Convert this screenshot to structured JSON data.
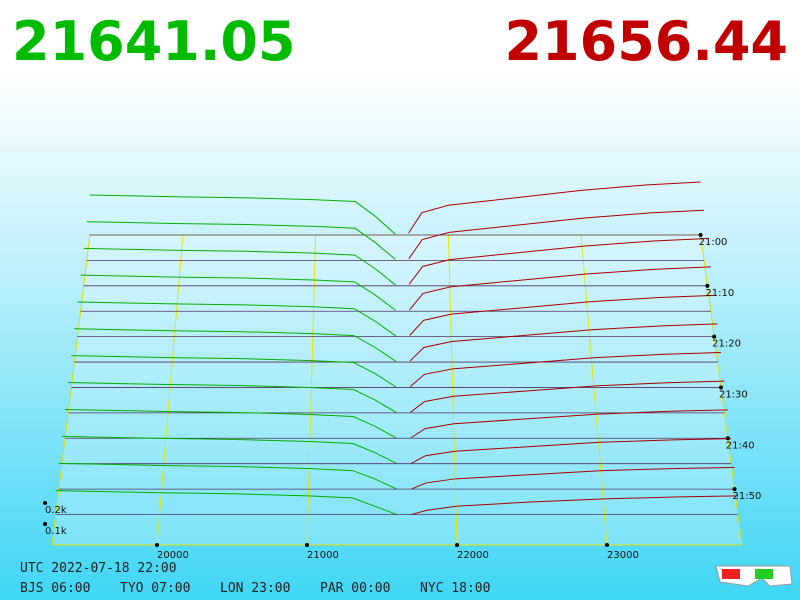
{
  "chart_data": {
    "type": "depth3d",
    "bid_price": "21641.05",
    "ask_price": "21656.44",
    "utc_label": "UTC 2022-07-18 22:00",
    "zones": [
      "BJS 06:00",
      "TYO 07:00",
      "LON 23:00",
      "PAR 00:00",
      "NYC 18:00"
    ],
    "xlim": [
      19300,
      23900
    ],
    "xticks": [
      20000,
      21000,
      22000,
      23000
    ],
    "yticks": [
      {
        "value": 100,
        "label": "0.1k"
      },
      {
        "value": 200,
        "label": "0.2k"
      }
    ],
    "zlim": [
      0,
      61
    ],
    "zticks": [
      {
        "value": 0,
        "label": "21:00"
      },
      {
        "value": 10,
        "label": "21:10"
      },
      {
        "value": 20,
        "label": "21:20"
      },
      {
        "value": 30,
        "label": "21:30"
      },
      {
        "value": 40,
        "label": "21:40"
      },
      {
        "value": 50,
        "label": "21:50"
      }
    ],
    "bid_levels": [
      19300,
      20000,
      20500,
      21000,
      21300,
      21450,
      21600
    ],
    "ask_levels": [
      21700,
      21800,
      22000,
      22500,
      23000,
      23500,
      23900
    ],
    "bid_color": "#00b000",
    "ask_color": "#aa0000",
    "snapshots": [
      {
        "t": 0,
        "bids": [
          215,
          205,
          200,
          190,
          180,
          100,
          5
        ],
        "asks": [
          10,
          120,
          160,
          200,
          240,
          270,
          285
        ]
      },
      {
        "t": 5,
        "bids": [
          206,
          196,
          191,
          181,
          171,
          95,
          5
        ],
        "asks": [
          9,
          111,
          149,
          187,
          225,
          253,
          267
        ]
      },
      {
        "t": 10,
        "bids": [
          197,
          187,
          182,
          172,
          162,
          90,
          4
        ],
        "asks": [
          8,
          102,
          138,
          174,
          210,
          236,
          249
        ]
      },
      {
        "t": 15,
        "bids": [
          188,
          178,
          173,
          163,
          153,
          85,
          4
        ],
        "asks": [
          7,
          93,
          127,
          161,
          195,
          219,
          231
        ]
      },
      {
        "t": 20,
        "bids": [
          179,
          169,
          164,
          154,
          144,
          80,
          3
        ],
        "asks": [
          6,
          84,
          116,
          148,
          180,
          202,
          213
        ]
      },
      {
        "t": 25,
        "bids": [
          170,
          160,
          155,
          145,
          135,
          75,
          3
        ],
        "asks": [
          5,
          75,
          105,
          135,
          165,
          185,
          195
        ]
      },
      {
        "t": 30,
        "bids": [
          161,
          151,
          146,
          136,
          126,
          70,
          2
        ],
        "asks": [
          4,
          66,
          94,
          122,
          150,
          168,
          177
        ]
      },
      {
        "t": 35,
        "bids": [
          152,
          142,
          137,
          127,
          117,
          65,
          2
        ],
        "asks": [
          3,
          57,
          83,
          109,
          135,
          151,
          159
        ]
      },
      {
        "t": 40,
        "bids": [
          143,
          133,
          128,
          118,
          108,
          60,
          1
        ],
        "asks": [
          2,
          48,
          72,
          96,
          120,
          134,
          141
        ]
      },
      {
        "t": 45,
        "bids": [
          134,
          124,
          119,
          109,
          99,
          55,
          1
        ],
        "asks": [
          1,
          39,
          61,
          83,
          105,
          117,
          123
        ]
      },
      {
        "t": 50,
        "bids": [
          125,
          115,
          110,
          100,
          90,
          50,
          0
        ],
        "asks": [
          0,
          30,
          50,
          70,
          90,
          100,
          105
        ]
      },
      {
        "t": 55,
        "bids": [
          115,
          105,
          100,
          90,
          80,
          40,
          0
        ],
        "asks": [
          0,
          20,
          40,
          60,
          75,
          85,
          90
        ]
      }
    ]
  }
}
